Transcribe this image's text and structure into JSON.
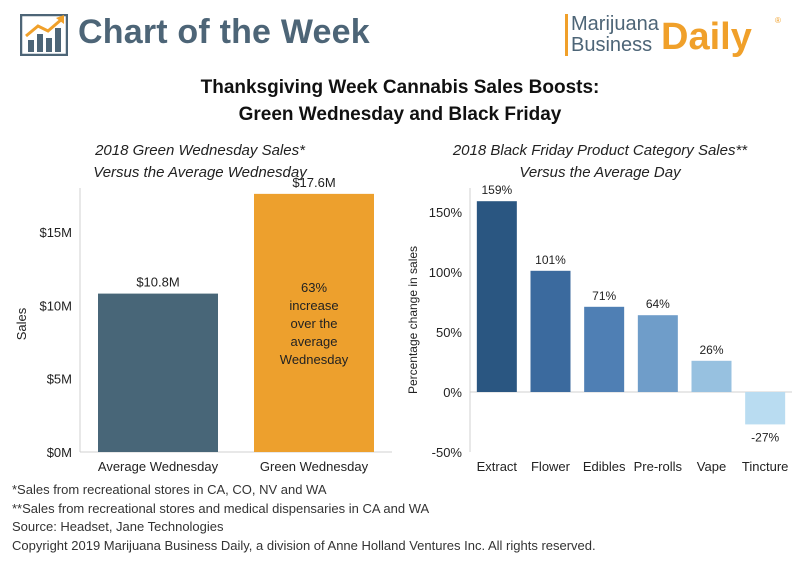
{
  "header": {
    "section_title": "Chart of the Week",
    "brand_line1": "Marijuana",
    "brand_line2": "Business",
    "brand_line3": "Daily",
    "brand_mark": "®"
  },
  "title_line1": "Thanksgiving Week Cannabis Sales Boosts:",
  "title_line2": "Green Wednesday and Black Friday",
  "chart_data": [
    {
      "type": "bar",
      "title_line1": "2018 Green Wednesday Sales*",
      "title_line2": "Versus the Average Wednesday",
      "categories": [
        "Average Wednesday",
        "Green Wednesday"
      ],
      "values": [
        10.8,
        17.6
      ],
      "data_labels": [
        "$10.8M",
        "$17.6M"
      ],
      "colors": [
        "#486678",
        "#eda02d"
      ],
      "annotation": [
        "63%",
        "increase",
        "over the",
        "average",
        "Wednesday"
      ],
      "ylabel": "Sales",
      "ylim": [
        0,
        18
      ],
      "yticks": [
        0,
        5,
        10,
        15
      ],
      "ytick_labels": [
        "$0M",
        "$5M",
        "$10M",
        "$15M"
      ],
      "grid": false
    },
    {
      "type": "bar",
      "title_line1": "2018 Black Friday Product Category Sales**",
      "title_line2": "Versus the Average Day",
      "categories": [
        "Extract",
        "Flower",
        "Edibles",
        "Pre-rolls",
        "Vape",
        "Tincture"
      ],
      "values": [
        159,
        101,
        71,
        64,
        26,
        -27
      ],
      "data_labels": [
        "159%",
        "101%",
        "71%",
        "64%",
        "26%",
        "-27%"
      ],
      "colors": [
        "#2a5681",
        "#3b6a9e",
        "#4f7fb4",
        "#6f9dc9",
        "#97c1e0",
        "#b9dcf1"
      ],
      "ylabel": "Percentage change in sales",
      "ylim": [
        -50,
        170
      ],
      "yticks": [
        -50,
        0,
        50,
        100,
        150
      ],
      "ytick_labels": [
        "-50%",
        "0%",
        "50%",
        "100%",
        "150%"
      ],
      "grid": false
    }
  ],
  "footnotes": [
    "*Sales from recreational stores in CA, CO, NV and WA",
    "**Sales from recreational stores and medical dispensaries in CA and WA",
    "Source: Headset, Jane Technologies",
    "Copyright 2019 Marijuana Business Daily, a division of Anne Holland Ventures Inc. All rights reserved."
  ]
}
